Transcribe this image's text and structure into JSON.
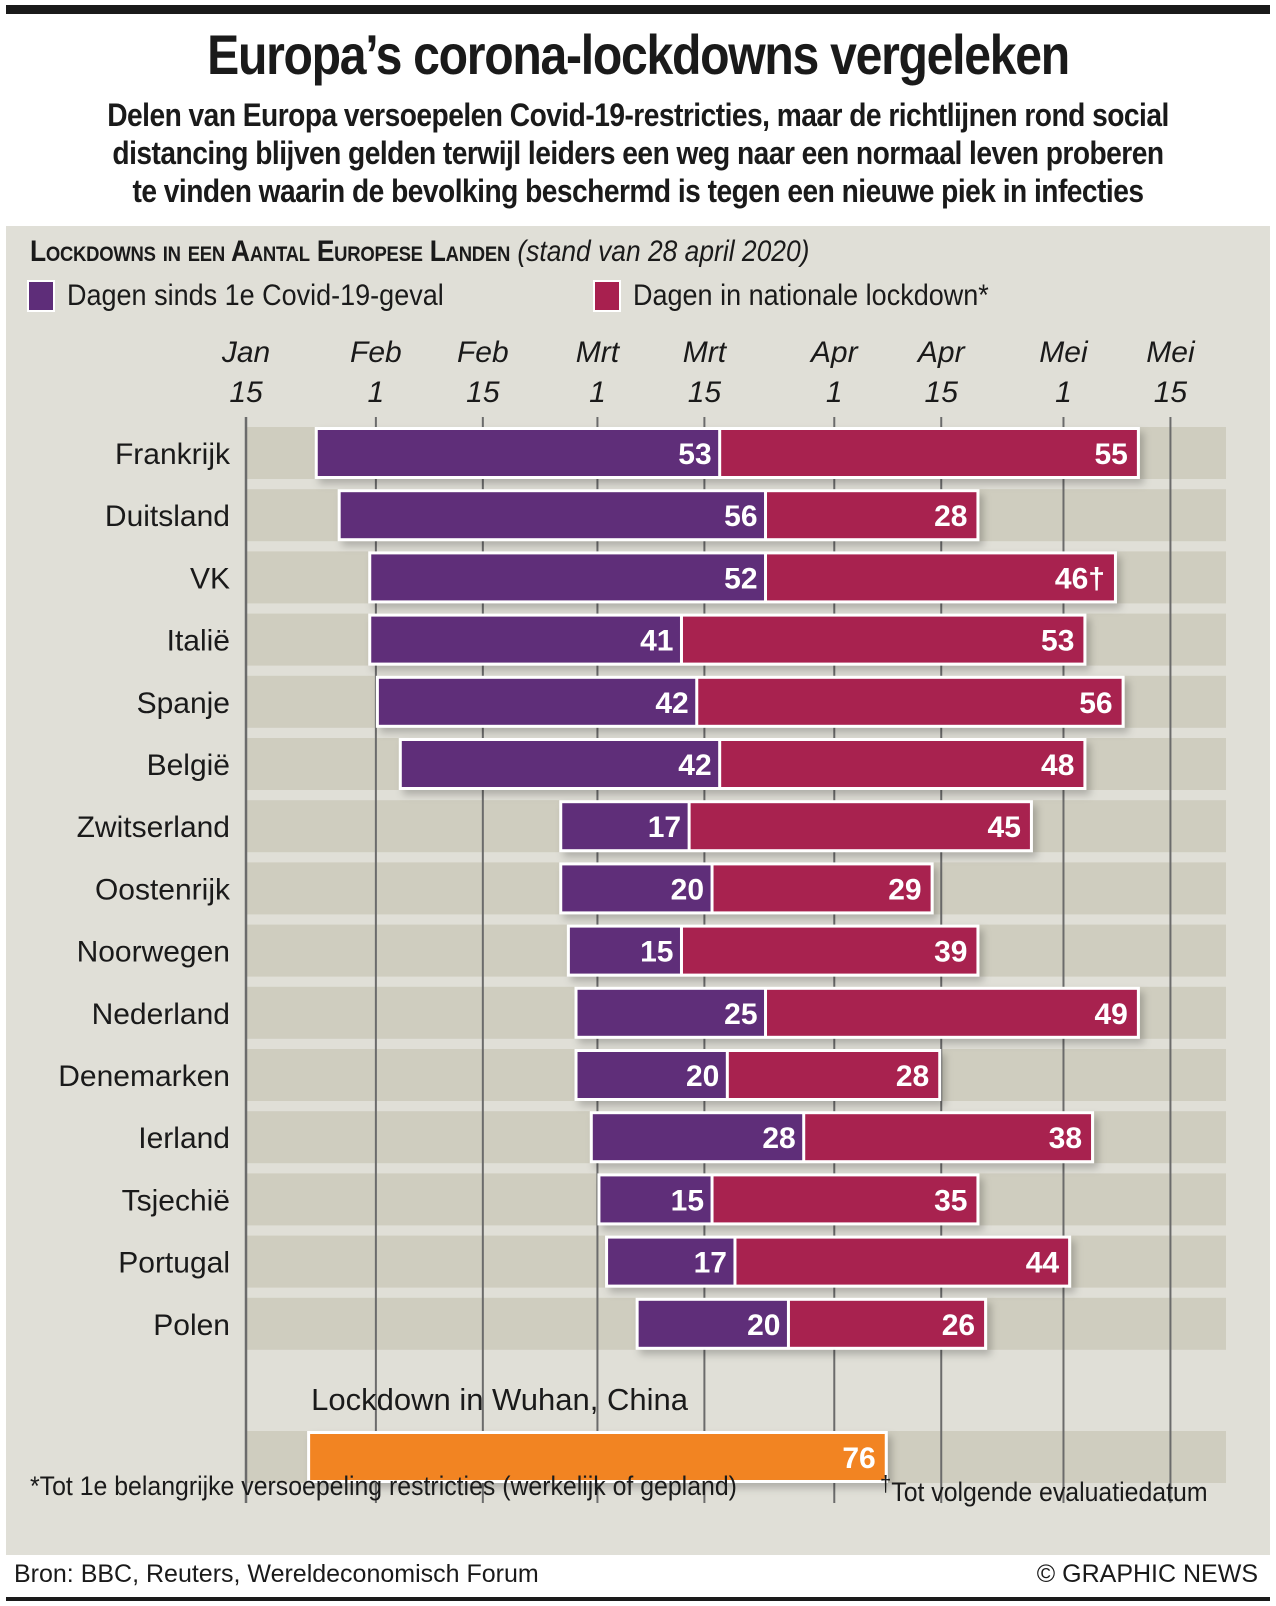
{
  "header": {
    "title": "Europa’s corona-lockdowns vergeleken",
    "subtitle_lines": [
      "Delen van Europa versoepelen Covid-19-restricties, maar de richtlijnen rond social",
      "distancing blijven gelden terwijl leiders een weg naar een normaal leven proberen",
      "te vinden waarin de bevolking beschermd is tegen een nieuwe piek in infecties"
    ]
  },
  "chart_heading": {
    "caps": "Lockdowns in een Aantal Europese Landen",
    "note": "(stand van 28 april 2020)"
  },
  "legend": [
    {
      "label": "Dagen sinds 1e Covid-19-geval",
      "color": "#5e2d79"
    },
    {
      "label": "Dagen in nationale lockdown*",
      "color": "#a8204f"
    }
  ],
  "colors": {
    "first_case": "#5e2d79",
    "lockdown": "#a8204f",
    "wuhan": "#f28421",
    "panel": "#e0dfd7",
    "band": "#cfcdbf",
    "gridline": "#6b6b6b"
  },
  "footnotes": {
    "star": "*Tot 1e belangrijke versoepeling restricties (werkelijk of gepland)",
    "dagger_mark": "†",
    "dagger": "Tot volgende evaluatiedatum"
  },
  "credits": {
    "source": "Bron: BBC, Reuters, Wereldeconomisch Forum",
    "copyright": "© GRAPHIC NEWS"
  },
  "chart_data": {
    "type": "bar",
    "orientation": "horizontal-stacked-timeline",
    "title": "Lockdowns in een Aantal Europese Landen (stand van 28 april 2020)",
    "x_axis": {
      "unit": "days since Jan 15, 2020",
      "range": [
        0,
        121
      ],
      "ticks": [
        {
          "month": "Jan",
          "day": "15",
          "offset": 0
        },
        {
          "month": "Feb",
          "day": "1",
          "offset": 17
        },
        {
          "month": "Feb",
          "day": "15",
          "offset": 31
        },
        {
          "month": "Mrt",
          "day": "1",
          "offset": 46
        },
        {
          "month": "Mrt",
          "day": "15",
          "offset": 60
        },
        {
          "month": "Apr",
          "day": "1",
          "offset": 77
        },
        {
          "month": "Apr",
          "day": "15",
          "offset": 91
        },
        {
          "month": "Mei",
          "day": "1",
          "offset": 107
        },
        {
          "month": "Mei",
          "day": "15",
          "offset": 121
        }
      ],
      "grid": true
    },
    "series": [
      {
        "name": "Dagen sinds 1e Covid-19-geval",
        "key": "first_case"
      },
      {
        "name": "Dagen in nationale lockdown*",
        "key": "lockdown"
      }
    ],
    "countries": [
      {
        "name": "Frankrijk",
        "start": 9,
        "first_case": 53,
        "lockdown": 55,
        "lockdown_label": "55"
      },
      {
        "name": "Duitsland",
        "start": 12,
        "first_case": 56,
        "lockdown": 28,
        "lockdown_label": "28"
      },
      {
        "name": "VK",
        "start": 16,
        "first_case": 52,
        "lockdown": 46,
        "lockdown_label": "46†"
      },
      {
        "name": "Italië",
        "start": 16,
        "first_case": 41,
        "lockdown": 53,
        "lockdown_label": "53"
      },
      {
        "name": "Spanje",
        "start": 17,
        "first_case": 42,
        "lockdown": 56,
        "lockdown_label": "56"
      },
      {
        "name": "België",
        "start": 20,
        "first_case": 42,
        "lockdown": 48,
        "lockdown_label": "48"
      },
      {
        "name": "Zwitserland",
        "start": 41,
        "first_case": 17,
        "lockdown": 45,
        "lockdown_label": "45"
      },
      {
        "name": "Oostenrijk",
        "start": 41,
        "first_case": 20,
        "lockdown": 29,
        "lockdown_label": "29"
      },
      {
        "name": "Noorwegen",
        "start": 42,
        "first_case": 15,
        "lockdown": 39,
        "lockdown_label": "39"
      },
      {
        "name": "Nederland",
        "start": 43,
        "first_case": 25,
        "lockdown": 49,
        "lockdown_label": "49"
      },
      {
        "name": "Denemarken",
        "start": 43,
        "first_case": 20,
        "lockdown": 28,
        "lockdown_label": "28"
      },
      {
        "name": "Ierland",
        "start": 45,
        "first_case": 28,
        "lockdown": 38,
        "lockdown_label": "38"
      },
      {
        "name": "Tsjechië",
        "start": 46,
        "first_case": 15,
        "lockdown": 35,
        "lockdown_label": "35"
      },
      {
        "name": "Portugal",
        "start": 47,
        "first_case": 17,
        "lockdown": 44,
        "lockdown_label": "44"
      },
      {
        "name": "Polen",
        "start": 51,
        "first_case": 20,
        "lockdown": 26,
        "lockdown_label": "26"
      }
    ],
    "wuhan": {
      "label": "Lockdown in Wuhan, China",
      "start": 8,
      "lockdown": 76,
      "value_label": "76"
    }
  }
}
